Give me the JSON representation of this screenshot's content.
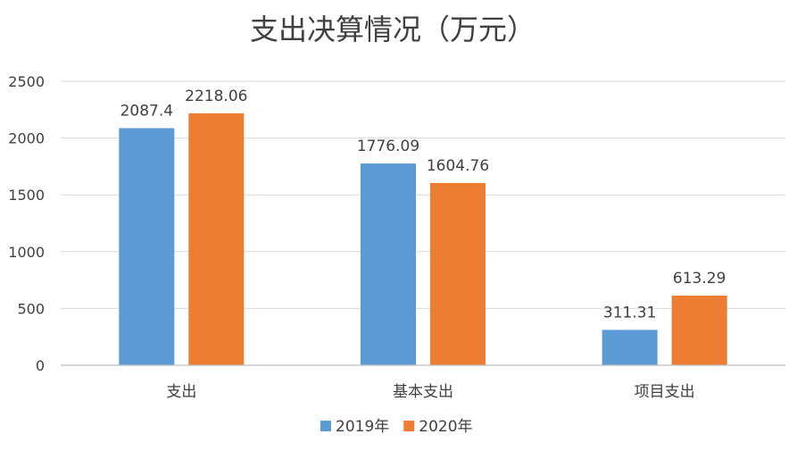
{
  "chart_data": {
    "type": "bar",
    "title": "支出决算情况（万元）",
    "categories": [
      "支出",
      "基本支出",
      "项目支出"
    ],
    "series": [
      {
        "name": "2019年",
        "values": [
          2087.4,
          1776.09,
          311.31
        ],
        "labels": [
          "2087.4",
          "1776.09",
          "311.31"
        ],
        "color": "#5b9bd5"
      },
      {
        "name": "2020年",
        "values": [
          2218.06,
          1604.76,
          613.29
        ],
        "labels": [
          "2218.06",
          "1604.76",
          "613.29"
        ],
        "color": "#ed7d31"
      }
    ],
    "yticks": [
      "0",
      "500",
      "1000",
      "1500",
      "2000",
      "2500"
    ],
    "ylim": [
      0,
      2500
    ],
    "xlabel": "",
    "ylabel": "",
    "grid": true,
    "legend_position": "bottom"
  }
}
